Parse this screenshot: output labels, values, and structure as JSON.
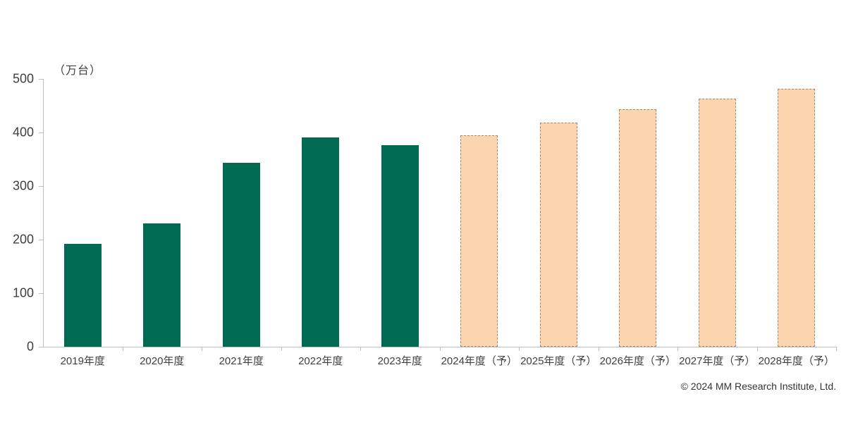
{
  "chart_data": {
    "type": "bar",
    "title": "",
    "unit_label": "（万台）",
    "categories": [
      "2019年度",
      "2020年度",
      "2021年度",
      "2022年度",
      "2023年度",
      "2024年度（予）",
      "2025年度（予）",
      "2026年度（予）",
      "2027年度（予）",
      "2028年度（予）"
    ],
    "series": [
      {
        "name": "actual",
        "values": [
          192,
          230,
          343,
          391,
          376,
          null,
          null,
          null,
          null,
          null
        ]
      },
      {
        "name": "forecast",
        "values": [
          null,
          null,
          null,
          null,
          null,
          395,
          419,
          444,
          463,
          482
        ]
      }
    ],
    "values_combined": [
      192,
      230,
      343,
      391,
      376,
      395,
      419,
      444,
      463,
      482
    ],
    "forecast_from_index": 5,
    "ylim": [
      0,
      500
    ],
    "yticks": [
      0,
      100,
      200,
      300,
      400,
      500
    ],
    "grid": "off",
    "legend": "none",
    "colors": {
      "actual_bar": "#006b52",
      "forecast_fill": "#fbd5ad",
      "forecast_border": "#9d8c7c",
      "axis": "#bfbfbf",
      "text": "#3f3f3f"
    }
  },
  "footer": {
    "copyright": "© 2024 MM Research Institute, Ltd."
  }
}
